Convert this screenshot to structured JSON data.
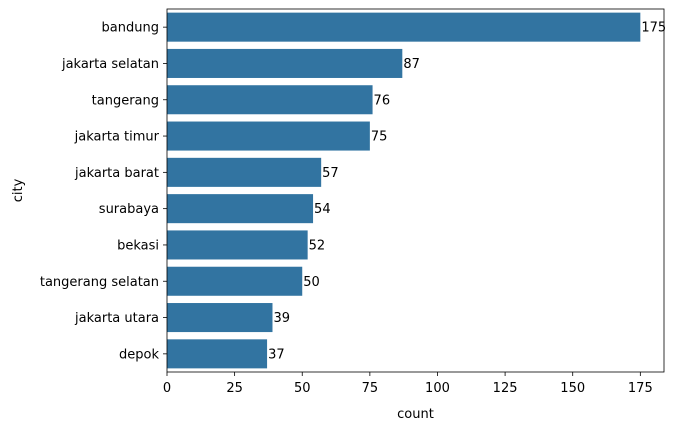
{
  "chart_data": {
    "type": "bar",
    "orientation": "horizontal",
    "title": "",
    "xlabel": "count",
    "ylabel": "city",
    "categories": [
      "bandung",
      "jakarta selatan",
      "tangerang",
      "jakarta timur",
      "jakarta barat",
      "surabaya",
      "bekasi",
      "tangerang selatan",
      "jakarta utara",
      "depok"
    ],
    "values": [
      175,
      87,
      76,
      75,
      57,
      54,
      52,
      50,
      39,
      37
    ],
    "data_labels": [
      "175",
      "87",
      "76",
      "75",
      "57",
      "54",
      "52",
      "50",
      "39",
      "37"
    ],
    "xlim": [
      0,
      183.75
    ],
    "xticks": [
      0,
      25,
      50,
      75,
      100,
      125,
      150,
      175
    ],
    "xtick_labels": [
      "0",
      "25",
      "50",
      "75",
      "100",
      "125",
      "150",
      "175"
    ],
    "grid": false,
    "legend": "none",
    "bar_color": "#3274a1"
  }
}
